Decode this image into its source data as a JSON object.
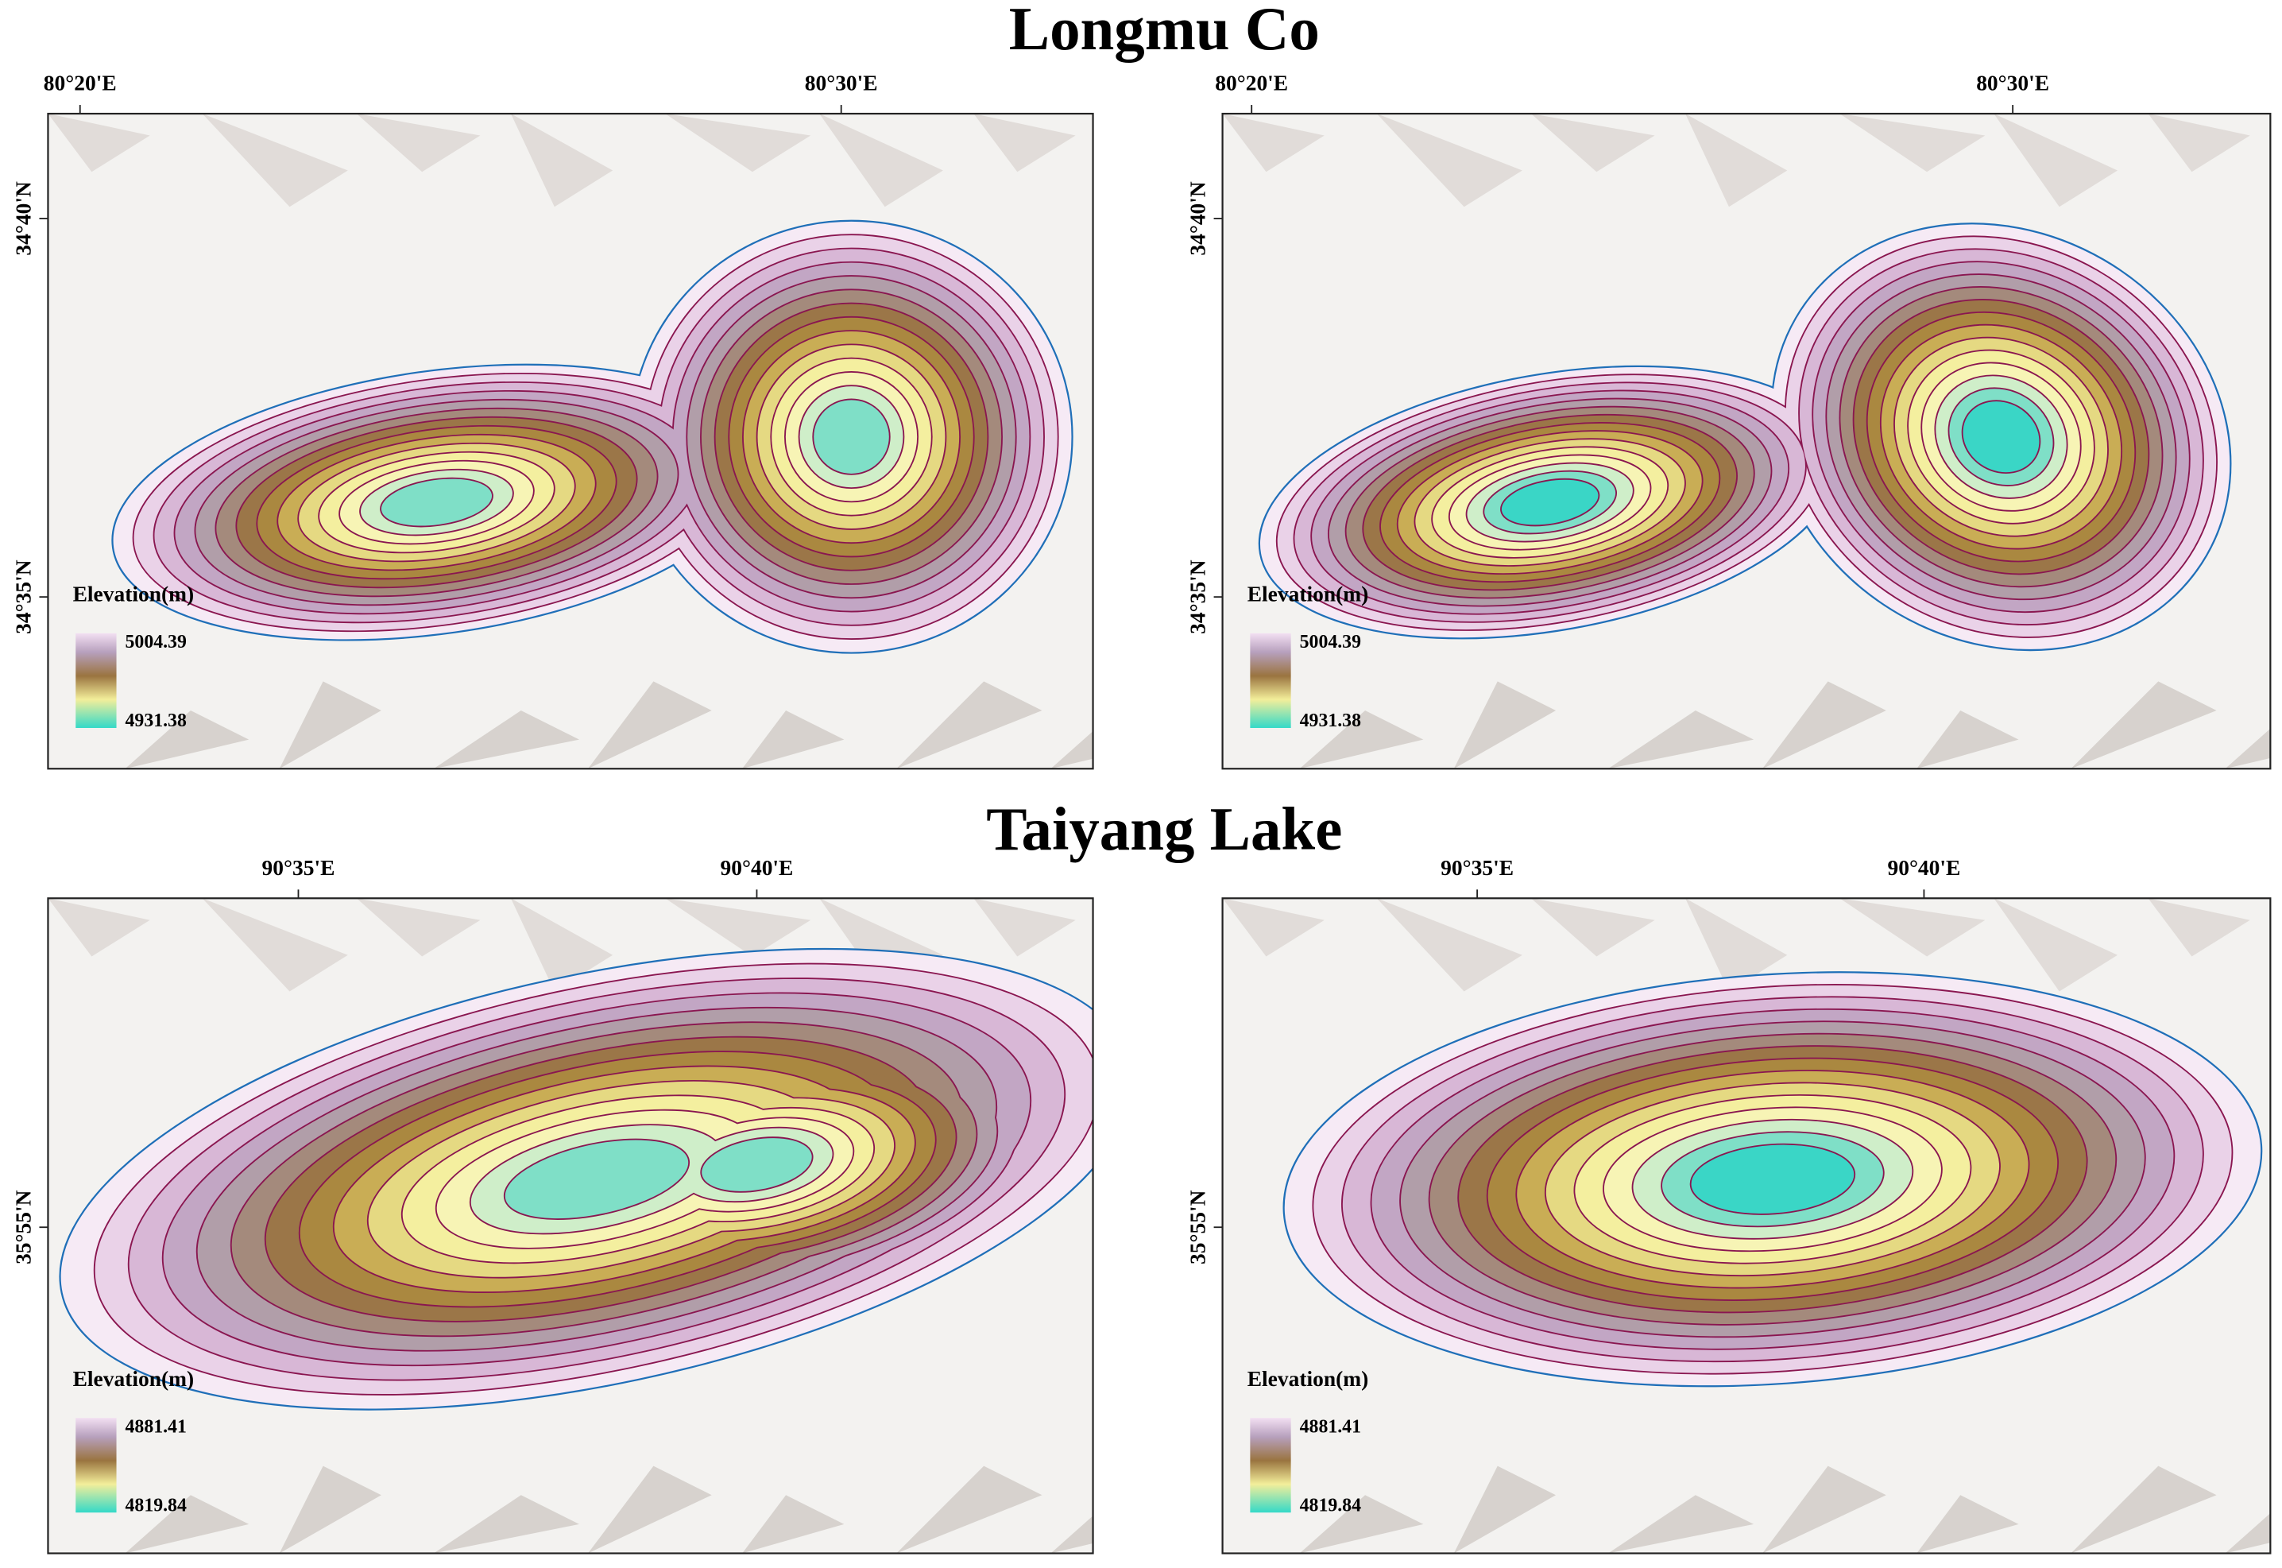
{
  "titles": [
    "Longmu Co",
    "Taiyang Lake"
  ],
  "panels": [
    {
      "x_ticks": [
        "80°20'E",
        "80°30'E"
      ],
      "y_ticks": [
        "34°40'N",
        "34°35'N"
      ],
      "legend": {
        "title": "Elevation(m)",
        "max": 5004.39,
        "min": 4931.38
      }
    },
    {
      "x_ticks": [
        "80°20'E",
        "80°30'E"
      ],
      "y_ticks": [
        "34°40'N",
        "34°35'N"
      ],
      "legend": {
        "title": "Elevation(m)",
        "max": 5004.39,
        "min": 4931.38
      }
    },
    {
      "x_ticks": [
        "90°35'E",
        "90°40'E"
      ],
      "y_ticks": [
        "35°55'N"
      ],
      "legend": {
        "title": "Elevation(m)",
        "max": 4881.41,
        "min": 4819.84
      }
    },
    {
      "x_ticks": [
        "90°35'E",
        "90°40'E"
      ],
      "y_ticks": [
        "35°55'N"
      ],
      "legend": {
        "title": "Elevation(m)",
        "max": 4881.41,
        "min": 4819.84
      }
    }
  ]
}
